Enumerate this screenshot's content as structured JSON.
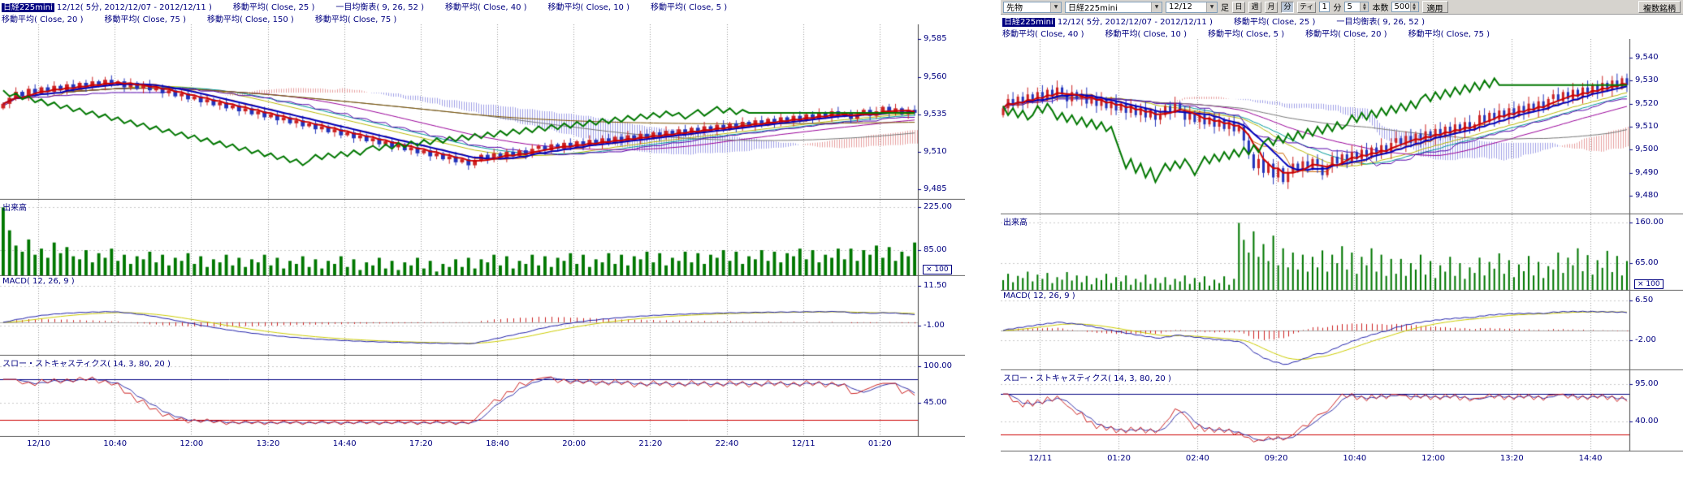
{
  "icons": {
    "dropdown": "▼",
    "spinner_up": "▲",
    "spinner_down": "▼"
  },
  "toolbar": {
    "category": "先物",
    "symbol": "日経225mini",
    "date": "12/12",
    "bar_label": "足",
    "period_buttons": [
      "日",
      "週",
      "月",
      "分",
      "ティ"
    ],
    "period_active": 3,
    "tick_value": "1",
    "tick_unit": "分",
    "minutes_value": "5",
    "bars_label": "本数",
    "bars_value": "500",
    "apply_label": "適用",
    "multi_label": "複数銘柄"
  },
  "colors": {
    "up": "#cc2222",
    "down": "#2233bb",
    "volume": "#007700",
    "cloud_up": "#dd7777",
    "cloud_down": "#7777dd",
    "ma5": "#cc0000",
    "ma10": "#0000bb",
    "ma20": "#b8b800",
    "ma25": "#009999",
    "ma40": "#990099",
    "ma75": "#777777",
    "ma150": "#7a5200",
    "tenkan": "#cc6600",
    "kijun": "#5500aa",
    "chikou": "#007700",
    "macd_line": "#2222aa",
    "macd_signal": "#cccc00",
    "macd_hist": "#cc2222",
    "stoch_k": "#cc2222",
    "stoch_d": "#3333aa",
    "level_high": "#000080",
    "level_low": "#cc0000",
    "grid": "#9a9a9a",
    "text": "#000080"
  },
  "panels": {
    "left": {
      "header": {
        "symbol": "日経225mini",
        "title_rest": " 12/12( 5分, 2012/12/07 - 2012/12/11 )",
        "row1": [
          "移動平均( Close, 25 )",
          "一目均衡表( 9, 26, 52 )",
          "移動平均( Close, 40 )",
          "移動平均( Close, 10 )",
          "移動平均( Close, 5 )"
        ],
        "row2": [
          "移動平均( Close, 20 )",
          "移動平均( Close, 75 )",
          "移動平均( Close, 150 )",
          "移動平均( Close, 75 )"
        ]
      },
      "panes": {
        "volume_title": "出来高",
        "macd_title": "MACD( 12, 26, 9 )",
        "stoch_title": "スロー・ストキャスティクス( 14, 3, 80, 20 )"
      },
      "axis": {
        "price_ticks": [
          {
            "t": "9,585",
            "v": 9585
          },
          {
            "t": "9,560",
            "v": 9560
          },
          {
            "t": "9,535",
            "v": 9535
          },
          {
            "t": "9,510",
            "v": 9510
          },
          {
            "t": "9,485",
            "v": 9485
          }
        ],
        "price_range": [
          9595,
          9478
        ],
        "volume_ticks": [
          {
            "t": "225.00",
            "v": 225
          },
          {
            "t": "85.00",
            "v": 85
          }
        ],
        "volume_range": [
          250,
          0
        ],
        "volume_multiplier": "× 100",
        "macd_ticks": [
          {
            "t": "11.50",
            "v": 11.5
          },
          {
            "t": "-1.00",
            "v": -1
          }
        ],
        "macd_range": [
          14.5,
          -10.5
        ],
        "stoch_ticks": [
          {
            "t": "100.00",
            "v": 100
          },
          {
            "t": "45.00",
            "v": 45
          }
        ],
        "stoch_range": [
          115,
          -5
        ],
        "stoch_levels": [
          80,
          20
        ]
      },
      "x_labels": [
        "12/10",
        "10:40",
        "12:00",
        "13:20",
        "14:40",
        "17:20",
        "18:40",
        "20:00",
        "21:20",
        "22:40",
        "12/11",
        "01:20"
      ],
      "chart_data": {
        "type": "candlestick",
        "indicators": {
          "ma_windows": [
            5,
            10,
            20,
            25,
            40,
            75,
            150
          ],
          "ichimoku": [
            9,
            26,
            52
          ],
          "macd": [
            12,
            26,
            9
          ],
          "stochastics": [
            14,
            3
          ]
        },
        "closes": [
          9542,
          9546,
          9550,
          9547,
          9552,
          9549,
          9553,
          9550,
          9554,
          9551,
          9555,
          9552,
          9556,
          9553,
          9557,
          9554,
          9558,
          9555,
          9557,
          9553,
          9556,
          9552,
          9555,
          9551,
          9553,
          9549,
          9551,
          9547,
          9549,
          9545,
          9547,
          9543,
          9545,
          9541,
          9543,
          9539,
          9541,
          9537,
          9539,
          9535,
          9537,
          9533,
          9535,
          9531,
          9533,
          9529,
          9531,
          9527,
          9529,
          9525,
          9527,
          9523,
          9525,
          9521,
          9523,
          9519,
          9521,
          9517,
          9519,
          9515,
          9517,
          9513,
          9515,
          9511,
          9513,
          9509,
          9511,
          9507,
          9509,
          9505,
          9507,
          9503,
          9505,
          9501,
          9504,
          9508,
          9505,
          9509,
          9506,
          9510,
          9507,
          9511,
          9508,
          9512,
          9514,
          9511,
          9515,
          9512,
          9516,
          9513,
          9517,
          9514,
          9518,
          9515,
          9519,
          9516,
          9520,
          9517,
          9521,
          9518,
          9522,
          9519,
          9523,
          9520,
          9524,
          9521,
          9525,
          9522,
          9526,
          9523,
          9527,
          9524,
          9528,
          9525,
          9529,
          9526,
          9530,
          9527,
          9531,
          9528,
          9532,
          9529,
          9533,
          9530,
          9534,
          9531,
          9535,
          9532,
          9536,
          9533,
          9537,
          9534,
          9536,
          9532,
          9535,
          9538,
          9534,
          9537,
          9540,
          9536,
          9539,
          9535,
          9538,
          9536
        ],
        "volumes": [
          225,
          150,
          100,
          80,
          120,
          70,
          90,
          60,
          110,
          75,
          95,
          65,
          55,
          85,
          45,
          75,
          60,
          90,
          50,
          70,
          40,
          65,
          55,
          80,
          45,
          70,
          35,
          60,
          50,
          75,
          40,
          65,
          30,
          55,
          45,
          70,
          35,
          60,
          30,
          55,
          45,
          70,
          35,
          60,
          25,
          50,
          40,
          65,
          30,
          55,
          25,
          50,
          40,
          65,
          30,
          55,
          20,
          45,
          35,
          60,
          25,
          50,
          20,
          45,
          35,
          60,
          25,
          50,
          15,
          40,
          30,
          55,
          30,
          60,
          25,
          55,
          45,
          70,
          35,
          65,
          25,
          50,
          40,
          70,
          35,
          65,
          30,
          60,
          50,
          75,
          40,
          70,
          30,
          55,
          45,
          75,
          40,
          70,
          35,
          65,
          55,
          80,
          45,
          75,
          35,
          60,
          50,
          80,
          45,
          75,
          40,
          70,
          60,
          85,
          50,
          80,
          40,
          65,
          55,
          85,
          50,
          80,
          45,
          75,
          65,
          90,
          55,
          85,
          45,
          70,
          60,
          90,
          55,
          90,
          50,
          85,
          70,
          100,
          60,
          95,
          50,
          80,
          65,
          110
        ]
      }
    },
    "right": {
      "header": {
        "symbol": "日経225mini",
        "title_rest": " 12/12( 5分, 2012/12/07 - 2012/12/11 )",
        "row1": [
          "移動平均( Close, 25 )",
          "一目均衡表( 9, 26, 52 )"
        ],
        "row2": [
          "移動平均( Close, 40 )",
          "移動平均( Close, 10 )",
          "移動平均( Close, 5 )",
          "移動平均( Close, 20 )",
          "移動平均( Close, 75 )"
        ]
      },
      "panes": {
        "volume_title": "出来高",
        "macd_title": "MACD( 12, 26, 9 )",
        "stoch_title": "スロー・ストキャスティクス( 14, 3, 80, 20 )"
      },
      "axis": {
        "price_ticks": [
          {
            "t": "9,540",
            "v": 9540
          },
          {
            "t": "9,530",
            "v": 9530
          },
          {
            "t": "9,520",
            "v": 9520
          },
          {
            "t": "9,510",
            "v": 9510
          },
          {
            "t": "9,500",
            "v": 9500
          },
          {
            "t": "9,490",
            "v": 9490
          },
          {
            "t": "9,480",
            "v": 9480
          }
        ],
        "price_range": [
          9548,
          9472
        ],
        "volume_ticks": [
          {
            "t": "160.00",
            "v": 160
          },
          {
            "t": "65.00",
            "v": 65
          }
        ],
        "volume_range": [
          180,
          0
        ],
        "volume_multiplier": "× 100",
        "macd_ticks": [
          {
            "t": "6.50",
            "v": 6.5
          },
          {
            "t": "-2.00",
            "v": -2
          }
        ],
        "macd_range": [
          8.5,
          -8.5
        ],
        "stoch_ticks": [
          {
            "t": "95.00",
            "v": 95
          },
          {
            "t": "40.00",
            "v": 40
          }
        ],
        "stoch_range": [
          115,
          -5
        ],
        "stoch_levels": [
          80,
          20
        ]
      },
      "x_labels": [
        "12/11",
        "01:20",
        "02:40",
        "09:20",
        "10:40",
        "12:00",
        "13:20",
        "14:40"
      ],
      "chart_data": {
        "type": "candlestick",
        "indicators": {
          "ma_windows": [
            5,
            10,
            20,
            25,
            40,
            75
          ],
          "ichimoku": [
            9,
            26,
            52
          ],
          "macd": [
            12,
            26,
            9
          ],
          "stochastics": [
            14,
            3
          ]
        },
        "closes": [
          9518,
          9522,
          9519,
          9523,
          9520,
          9524,
          9521,
          9525,
          9522,
          9526,
          9523,
          9527,
          9524,
          9521,
          9525,
          9522,
          9524,
          9520,
          9523,
          9519,
          9522,
          9518,
          9521,
          9517,
          9520,
          9516,
          9519,
          9515,
          9518,
          9514,
          9517,
          9513,
          9515,
          9519,
          9516,
          9520,
          9517,
          9513,
          9516,
          9512,
          9515,
          9511,
          9514,
          9510,
          9513,
          9509,
          9512,
          9508,
          9510,
          9504,
          9498,
          9492,
          9496,
          9490,
          9494,
          9488,
          9492,
          9486,
          9490,
          9494,
          9491,
          9495,
          9492,
          9496,
          9493,
          9489,
          9493,
          9497,
          9494,
          9498,
          9495,
          9499,
          9496,
          9500,
          9497,
          9501,
          9498,
          9502,
          9499,
          9503,
          9505,
          9502,
          9506,
          9503,
          9507,
          9504,
          9508,
          9505,
          9509,
          9506,
          9510,
          9507,
          9511,
          9508,
          9512,
          9509,
          9511,
          9515,
          9512,
          9516,
          9513,
          9517,
          9514,
          9518,
          9515,
          9519,
          9516,
          9520,
          9517,
          9521,
          9518,
          9522,
          9524,
          9521,
          9525,
          9522,
          9526,
          9523,
          9527,
          9524,
          9528,
          9525,
          9529,
          9526,
          9530,
          9527,
          9531,
          9528
        ],
        "volumes": [
          25,
          40,
          20,
          35,
          30,
          45,
          22,
          38,
          28,
          42,
          18,
          32,
          26,
          44,
          24,
          36,
          20,
          35,
          15,
          30,
          25,
          40,
          18,
          32,
          22,
          36,
          14,
          28,
          20,
          38,
          16,
          30,
          18,
          32,
          14,
          28,
          22,
          36,
          16,
          30,
          20,
          34,
          12,
          26,
          18,
          34,
          14,
          28,
          160,
          120,
          90,
          140,
          80,
          110,
          70,
          130,
          60,
          100,
          55,
          90,
          50,
          85,
          45,
          80,
          55,
          95,
          45,
          85,
          65,
          105,
          50,
          90,
          40,
          80,
          60,
          100,
          45,
          85,
          35,
          75,
          40,
          75,
          35,
          65,
          50,
          85,
          38,
          70,
          30,
          60,
          45,
          80,
          35,
          65,
          28,
          55,
          42,
          78,
          36,
          68,
          52,
          88,
          40,
          72,
          32,
          62,
          46,
          82,
          36,
          68,
          30,
          58,
          50,
          90,
          42,
          78,
          60,
          100,
          46,
          84,
          38,
          72,
          54,
          94,
          44,
          82,
          36,
          70
        ]
      }
    }
  }
}
